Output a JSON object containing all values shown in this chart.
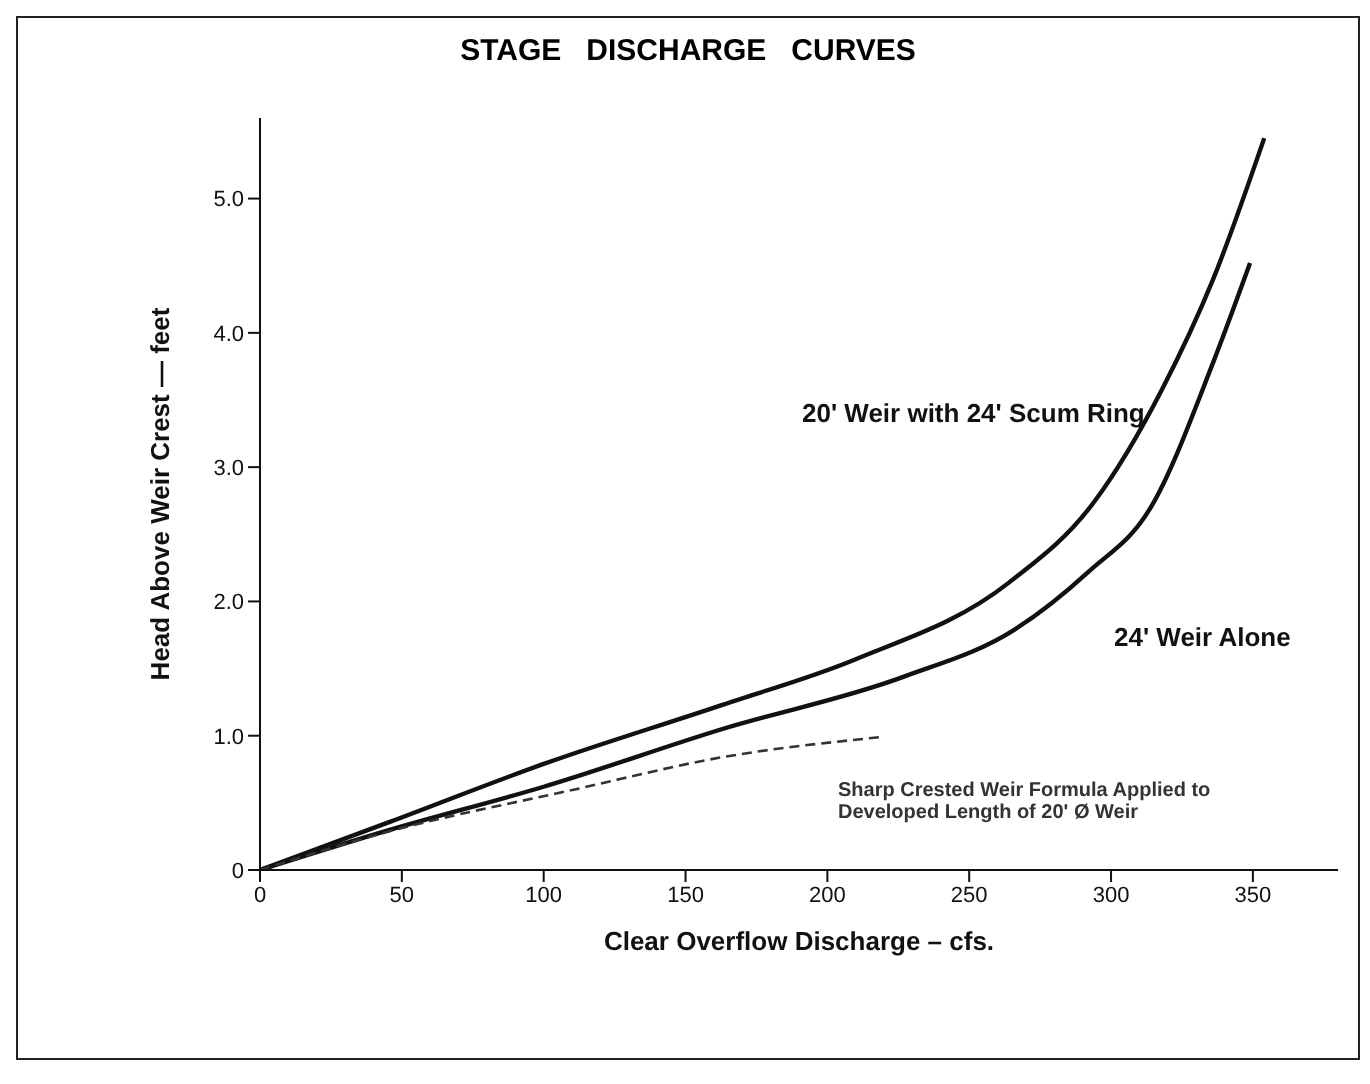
{
  "chart_data": {
    "type": "line",
    "title": "STAGE   DISCHARGE   CURVES",
    "xlabel": "Clear  Overflow  Discharge  –  cfs.",
    "ylabel": "Head  Above  Weir  Crest — feet",
    "xlim": [
      0,
      380
    ],
    "ylim": [
      0,
      5.6
    ],
    "xticks": [
      0,
      50,
      100,
      150,
      200,
      250,
      300,
      350
    ],
    "yticks": [
      0,
      {
        "value": 1,
        "label": "1.0"
      },
      {
        "value": 2,
        "label": "2.0"
      },
      {
        "value": 3,
        "label": "3.0"
      },
      {
        "value": 4,
        "label": "4.0"
      },
      {
        "value": 5,
        "label": "5.0"
      }
    ],
    "grid": false,
    "legend": false,
    "marker": "none",
    "series": [
      {
        "name": "20' Weir with 24' Scum Ring",
        "color": "#111111",
        "line_style": "solid",
        "x": [
          0,
          46,
          100,
          163,
          210,
          264,
          294,
          318,
          336,
          354
        ],
        "values": [
          0,
          0.36,
          0.79,
          1.23,
          1.57,
          2.14,
          2.74,
          3.58,
          4.4,
          5.45
        ]
      },
      {
        "name": "24' Weir Alone",
        "color": "#111111",
        "line_style": "solid",
        "x": [
          0,
          46,
          100,
          163,
          227,
          266,
          292,
          314,
          336,
          349
        ],
        "values": [
          0,
          0.3,
          0.62,
          1.05,
          1.44,
          1.79,
          2.22,
          2.7,
          3.78,
          4.52
        ]
      },
      {
        "name": "Sharp Crested Weir Formula Applied to Developed Length of 20' Ø Weir",
        "color": "#333333",
        "line_style": "dashed",
        "x": [
          0,
          46,
          111,
          163,
          219
        ],
        "values": [
          0,
          0.29,
          0.6,
          0.84,
          0.99
        ]
      }
    ]
  }
}
